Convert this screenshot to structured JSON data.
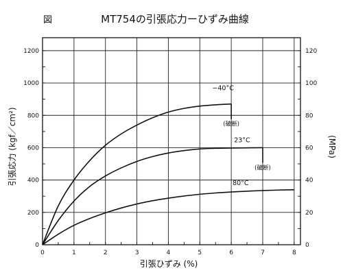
{
  "figure_label": "図",
  "chart_data": {
    "type": "line",
    "title": "MT754の引張応力ーひずみ曲線",
    "xlabel": "引張ひずみ (%)",
    "ylabel": "引張応力 (kgf／cm²)",
    "y2label": "(MPa)",
    "xlim": [
      0,
      8.2
    ],
    "ylim": [
      0,
      1280
    ],
    "y2lim": [
      0,
      128
    ],
    "x_ticks": [
      0,
      1,
      2,
      3,
      4,
      5,
      6,
      7,
      8
    ],
    "y_ticks": [
      0,
      200,
      400,
      600,
      800,
      1000,
      1200
    ],
    "y2_ticks": [
      0,
      20,
      40,
      60,
      80,
      100,
      120
    ],
    "grid": true,
    "series": [
      {
        "name": "−40°C",
        "x": [
          0,
          0.5,
          1,
          1.5,
          2,
          2.5,
          3,
          3.5,
          4,
          4.5,
          5,
          5.5,
          6
        ],
        "y": [
          0,
          240,
          400,
          520,
          615,
          685,
          740,
          785,
          820,
          843,
          857,
          865,
          870
        ],
        "end_annotation": "(破断)"
      },
      {
        "name": "23°C",
        "x": [
          0,
          0.5,
          1,
          1.5,
          2,
          2.5,
          3,
          3.5,
          4,
          4.5,
          5,
          5.5,
          6,
          6.5,
          7
        ],
        "y": [
          0,
          150,
          270,
          360,
          425,
          475,
          515,
          545,
          567,
          582,
          592,
          596,
          598,
          599,
          600
        ],
        "end_annotation": "(破断)"
      },
      {
        "name": "80°C",
        "x": [
          0,
          0.5,
          1,
          1.5,
          2,
          2.5,
          3,
          3.5,
          4,
          4.5,
          5,
          5.5,
          6,
          6.5,
          7,
          7.5,
          8
        ],
        "y": [
          0,
          65,
          120,
          162,
          197,
          227,
          252,
          272,
          288,
          301,
          312,
          320,
          326,
          331,
          335,
          338,
          340
        ]
      }
    ]
  }
}
